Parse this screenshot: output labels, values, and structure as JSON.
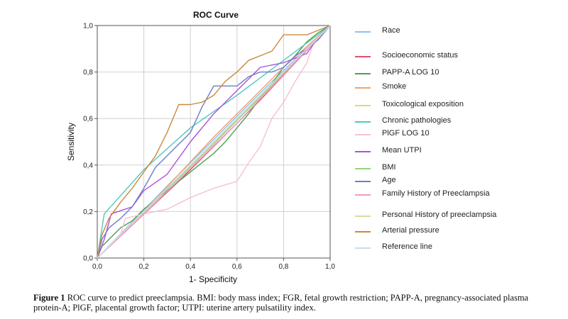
{
  "chart_data": {
    "type": "line",
    "title": "ROC Curve",
    "xlabel": "1- Specificity",
    "ylabel": "Sensitivity",
    "xlim": [
      0,
      1
    ],
    "ylim": [
      0,
      1
    ],
    "x_ticks": [
      "0,0",
      "0,2",
      "0,4",
      "0,6",
      "0,8",
      "1,0"
    ],
    "y_ticks": [
      "0,0",
      "0,2",
      "0,4",
      "0,6",
      "0,8",
      "1,0"
    ],
    "grid": true,
    "legend_position": "right",
    "series": [
      {
        "name": "Race",
        "color": "#8fc1ea",
        "points": [
          [
            0,
            0
          ],
          [
            0.3,
            0.31
          ],
          [
            0.7,
            0.71
          ],
          [
            1,
            1
          ]
        ]
      },
      {
        "name": "Socioeconomic status",
        "color": "#e05070",
        "points": [
          [
            0,
            0
          ],
          [
            0.35,
            0.33
          ],
          [
            0.7,
            0.68
          ],
          [
            1,
            1
          ]
        ]
      },
      {
        "name": "PAPP-A LOG 10",
        "color": "#4ea04e",
        "points": [
          [
            0,
            0
          ],
          [
            0.02,
            0.05
          ],
          [
            0.05,
            0.08
          ],
          [
            0.1,
            0.13
          ],
          [
            0.15,
            0.16
          ],
          [
            0.2,
            0.21
          ],
          [
            0.25,
            0.25
          ],
          [
            0.3,
            0.29
          ],
          [
            0.35,
            0.33
          ],
          [
            0.4,
            0.37
          ],
          [
            0.45,
            0.41
          ],
          [
            0.5,
            0.45
          ],
          [
            0.55,
            0.5
          ],
          [
            0.6,
            0.56
          ],
          [
            0.65,
            0.62
          ],
          [
            0.7,
            0.69
          ],
          [
            0.75,
            0.75
          ],
          [
            0.8,
            0.82
          ],
          [
            0.85,
            0.87
          ],
          [
            0.9,
            0.93
          ],
          [
            0.95,
            0.97
          ],
          [
            1,
            1
          ]
        ]
      },
      {
        "name": "Smoke",
        "color": "#f0a070",
        "points": [
          [
            0,
            0
          ],
          [
            0.2,
            0.2
          ],
          [
            0.5,
            0.52
          ],
          [
            0.8,
            0.82
          ],
          [
            1,
            1
          ]
        ]
      },
      {
        "name": "Toxicological exposition",
        "color": "#e8d860",
        "points": [
          [
            0,
            0
          ],
          [
            0.4,
            0.4
          ],
          [
            0.7,
            0.69
          ],
          [
            1,
            1
          ]
        ]
      },
      {
        "name": "Chronic pathologies",
        "color": "#50c8b8",
        "points": [
          [
            0,
            0
          ],
          [
            0.03,
            0.19
          ],
          [
            0.2,
            0.38
          ],
          [
            0.4,
            0.56
          ],
          [
            0.6,
            0.7
          ],
          [
            0.8,
            0.85
          ],
          [
            1,
            1
          ]
        ]
      },
      {
        "name": "PlGF LOG 10",
        "color": "#f4c0d8",
        "points": [
          [
            0,
            0
          ],
          [
            0.05,
            0.05
          ],
          [
            0.1,
            0.1
          ],
          [
            0.12,
            0.17
          ],
          [
            0.2,
            0.19
          ],
          [
            0.3,
            0.21
          ],
          [
            0.4,
            0.26
          ],
          [
            0.5,
            0.3
          ],
          [
            0.6,
            0.33
          ],
          [
            0.65,
            0.41
          ],
          [
            0.7,
            0.48
          ],
          [
            0.75,
            0.6
          ],
          [
            0.8,
            0.67
          ],
          [
            0.85,
            0.76
          ],
          [
            0.9,
            0.84
          ],
          [
            0.93,
            0.93
          ],
          [
            0.97,
            0.97
          ],
          [
            1,
            1
          ]
        ]
      },
      {
        "name": "Mean UTPI",
        "color": "#b050e0",
        "points": [
          [
            0,
            0
          ],
          [
            0.03,
            0.08
          ],
          [
            0.06,
            0.19
          ],
          [
            0.15,
            0.22
          ],
          [
            0.2,
            0.29
          ],
          [
            0.3,
            0.36
          ],
          [
            0.4,
            0.5
          ],
          [
            0.5,
            0.62
          ],
          [
            0.6,
            0.72
          ],
          [
            0.7,
            0.82
          ],
          [
            0.8,
            0.84
          ],
          [
            0.9,
            0.88
          ],
          [
            0.95,
            0.95
          ],
          [
            1,
            1
          ]
        ]
      },
      {
        "name": "BMI",
        "color": "#96d080",
        "points": [
          [
            0,
            0
          ],
          [
            0.1,
            0.1
          ],
          [
            0.5,
            0.49
          ],
          [
            1,
            1
          ]
        ]
      },
      {
        "name": "Age",
        "color": "#6e7ec8",
        "points": [
          [
            0,
            0
          ],
          [
            0.02,
            0.08
          ],
          [
            0.05,
            0.13
          ],
          [
            0.1,
            0.17
          ],
          [
            0.15,
            0.22
          ],
          [
            0.2,
            0.3
          ],
          [
            0.25,
            0.39
          ],
          [
            0.3,
            0.44
          ],
          [
            0.35,
            0.49
          ],
          [
            0.4,
            0.54
          ],
          [
            0.45,
            0.65
          ],
          [
            0.5,
            0.74
          ],
          [
            0.55,
            0.74
          ],
          [
            0.6,
            0.74
          ],
          [
            0.65,
            0.78
          ],
          [
            0.7,
            0.8
          ],
          [
            0.75,
            0.8
          ],
          [
            0.8,
            0.82
          ],
          [
            0.85,
            0.87
          ],
          [
            0.9,
            0.9
          ],
          [
            0.95,
            0.94
          ],
          [
            1,
            1
          ]
        ]
      },
      {
        "name": "Family History of Preeclampsia",
        "color": "#f49ac0",
        "points": [
          [
            0,
            0
          ],
          [
            0.2,
            0.19
          ],
          [
            0.6,
            0.58
          ],
          [
            1,
            1
          ]
        ]
      },
      {
        "name": "Personal History of preeclampsia",
        "color": "#d8dca0",
        "points": [
          [
            0,
            0
          ],
          [
            0.3,
            0.3
          ],
          [
            0.7,
            0.7
          ],
          [
            1,
            1
          ]
        ]
      },
      {
        "name": "Arterial pressure",
        "color": "#c88a3c",
        "points": [
          [
            0,
            0
          ],
          [
            0.02,
            0.1
          ],
          [
            0.05,
            0.17
          ],
          [
            0.1,
            0.24
          ],
          [
            0.15,
            0.3
          ],
          [
            0.2,
            0.37
          ],
          [
            0.25,
            0.44
          ],
          [
            0.3,
            0.54
          ],
          [
            0.35,
            0.66
          ],
          [
            0.4,
            0.66
          ],
          [
            0.45,
            0.67
          ],
          [
            0.5,
            0.7
          ],
          [
            0.55,
            0.76
          ],
          [
            0.6,
            0.8
          ],
          [
            0.65,
            0.85
          ],
          [
            0.7,
            0.87
          ],
          [
            0.75,
            0.89
          ],
          [
            0.8,
            0.96
          ],
          [
            0.85,
            0.96
          ],
          [
            0.9,
            0.96
          ],
          [
            0.95,
            0.98
          ],
          [
            1,
            1
          ]
        ]
      },
      {
        "name": "Reference line",
        "color": "#cfd8f0",
        "points": [
          [
            0,
            0
          ],
          [
            1,
            1
          ]
        ]
      }
    ]
  },
  "caption": {
    "label": "Figure 1",
    "text": "ROC curve to predict preeclampsia. BMI: body mass index; FGR, fetal growth restriction; PAPP-A, pregnancy-associated plasma protein-A; PlGF, placental growth factor; UTPI: uterine artery pulsatility index."
  }
}
